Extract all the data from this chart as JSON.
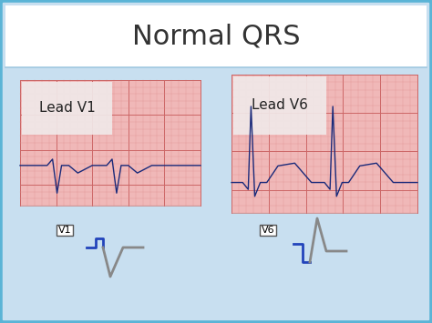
{
  "title": "Normal QRS",
  "title_fontsize": 22,
  "outer_border_color": "#5ab4d6",
  "outer_bg_color": "#c8dff0",
  "title_area_color": "#ffffff",
  "content_area_color": "#c8dff0",
  "separator_color": "#a0c8e0",
  "ecg_panel_color": "#f0b8b8",
  "ecg_grid_minor_color": "#e09090",
  "ecg_grid_major_color": "#cc6666",
  "ecg_line_color": "#1a2a7a",
  "label_v1": "Lead V1",
  "label_v6": "Lead V6",
  "label_fontsize": 11,
  "label_bg_color": "#f0e8e8",
  "tag_v1": "V1",
  "tag_v6": "V6",
  "tag_fontsize": 8,
  "v1_panel": [
    22,
    88,
    198,
    138
  ],
  "v6_panel": [
    254,
    82,
    204,
    152
  ],
  "diag_blue_color": "#2244bb",
  "diag_gray_color": "#888888"
}
